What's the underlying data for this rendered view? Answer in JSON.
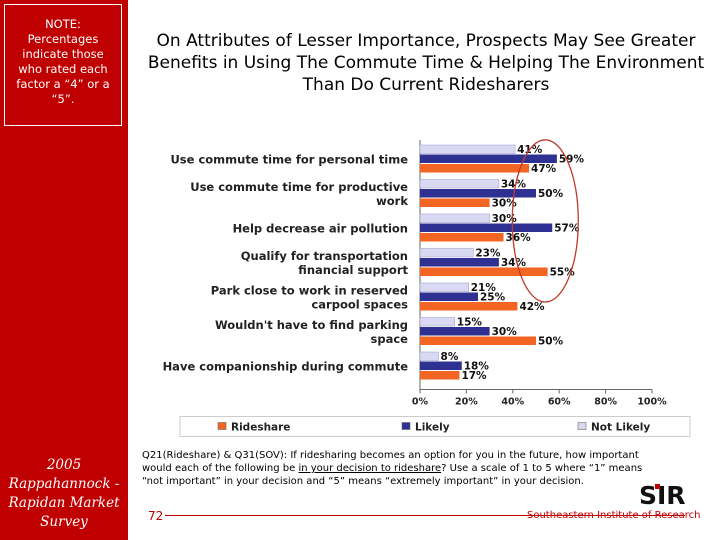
{
  "sidebar": {
    "note": "NOTE: Percentages indicate those who rated each factor a “4” or a “5”.",
    "survey_title": "2005 Rappahannock - Rapidan Market Survey"
  },
  "slide": {
    "title": "On Attributes of Lesser Importance, Prospects May See Greater Benefits in Using The Commute Time & Helping The Environment Than Do Current Ridesharers"
  },
  "chart_data": {
    "type": "bar",
    "orientation": "horizontal",
    "categories": [
      "Use commute time for personal time",
      "Use commute time for productive work",
      "Help decrease air pollution",
      "Qualify for transportation financial support",
      "Park close to work in reserved carpool spaces",
      "Wouldn't have to find parking space",
      "Have companionship during commute"
    ],
    "series": [
      {
        "name": "Not Likely",
        "color": "#d9d9f3",
        "values": [
          41,
          34,
          30,
          23,
          21,
          15,
          8
        ]
      },
      {
        "name": "Likely",
        "color": "#2e3192",
        "values": [
          59,
          50,
          57,
          34,
          25,
          30,
          18
        ]
      },
      {
        "name": "Rideshare",
        "color": "#f26522",
        "values": [
          47,
          30,
          36,
          55,
          42,
          50,
          17
        ]
      }
    ],
    "x_ticks": [
      "0%",
      "20%",
      "40%",
      "60%",
      "80%",
      "100%"
    ],
    "xlim": [
      0,
      100
    ],
    "legend": [
      "Rideshare",
      "Likely",
      "Not Likely"
    ],
    "legend_position": "bottom",
    "highlight": "oval circling the Likely values"
  },
  "footer": {
    "footnote_a": "Q21(Rideshare) & Q31(SOV): If ridesharing becomes an option for you in the future, how important would each of the following be ",
    "footnote_underlined": "in your decision to rideshare",
    "footnote_b": "? Use a scale of 1 to 5 where “1” means “not important” in your decision and “5” means “extremely important” in your decision.",
    "page_number": "72",
    "organization": "Southeastern Institute of Research",
    "logo_text": "SIR"
  },
  "colors": {
    "brand_red": "#c00000",
    "highlight_oval": "#c0392b"
  }
}
